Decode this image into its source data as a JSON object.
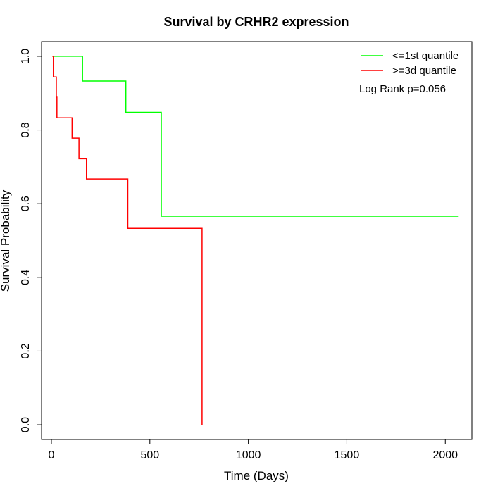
{
  "chart_data": {
    "type": "line",
    "title": "Survival by CRHR2 expression",
    "xlabel": "Time (Days)",
    "ylabel": "Survival Probability",
    "xlim": [
      -50,
      2135
    ],
    "ylim": [
      -0.04,
      1.04
    ],
    "xticks": [
      0,
      500,
      1000,
      1500,
      2000
    ],
    "yticks": [
      0.0,
      0.2,
      0.4,
      0.6,
      0.8,
      1.0
    ],
    "xtick_labels": [
      "0",
      "500",
      "1000",
      "1500",
      "2000"
    ],
    "ytick_labels": [
      "0.0",
      "0.2",
      "0.4",
      "0.6",
      "0.8",
      "1.0"
    ],
    "grid": false,
    "legend_position": "top-right",
    "annotation": "Log Rank p=0.056",
    "series": [
      {
        "name": "<=1st quantile",
        "color": "#00ff00",
        "steps": [
          [
            5,
            1.0
          ],
          [
            158,
            0.933
          ],
          [
            378,
            0.848
          ],
          [
            558,
            0.566
          ],
          [
            2068,
            0.566
          ]
        ]
      },
      {
        "name": ">=3d quantile",
        "color": "#ff0000",
        "steps": [
          [
            5,
            1.0
          ],
          [
            10,
            0.944
          ],
          [
            25,
            0.889
          ],
          [
            28,
            0.833
          ],
          [
            105,
            0.778
          ],
          [
            140,
            0.722
          ],
          [
            178,
            0.667
          ],
          [
            388,
            0.533
          ],
          [
            765,
            0.0
          ]
        ]
      }
    ]
  }
}
